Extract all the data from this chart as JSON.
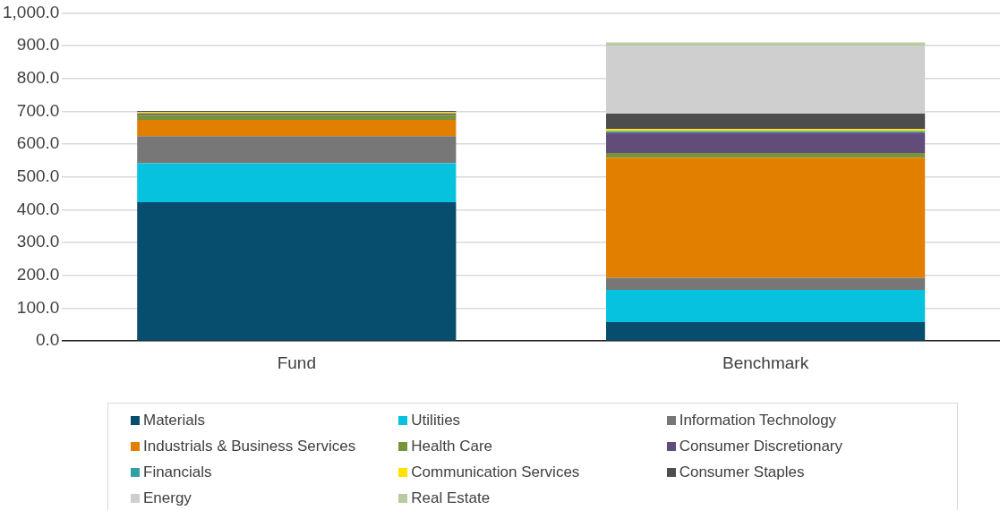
{
  "chart_data": {
    "type": "bar",
    "stacked": true,
    "categories": [
      "Fund",
      "Benchmark"
    ],
    "series": [
      {
        "name": "Materials",
        "color": "#074d6e",
        "values": [
          423,
          58
        ]
      },
      {
        "name": "Utilities",
        "color": "#06c2de",
        "values": [
          119,
          98
        ]
      },
      {
        "name": "Information Technology",
        "color": "#777777",
        "values": [
          82,
          37
        ]
      },
      {
        "name": "Industrials & Business Services",
        "color": "#e37f00",
        "values": [
          50,
          366
        ]
      },
      {
        "name": "Health Care",
        "color": "#77933c",
        "values": [
          15,
          14
        ]
      },
      {
        "name": "Consumer Discretionary",
        "color": "#624c7a",
        "values": [
          5,
          62
        ]
      },
      {
        "name": "Financials",
        "color": "#31a0a3",
        "values": [
          0,
          5
        ]
      },
      {
        "name": "Communication Services",
        "color": "#ffe100",
        "values": [
          4,
          6
        ]
      },
      {
        "name": "Consumer Staples",
        "color": "#4d4d4d",
        "values": [
          3,
          47
        ]
      },
      {
        "name": "Energy",
        "color": "#cfcfcf",
        "values": [
          0,
          207
        ]
      },
      {
        "name": "Real Estate",
        "color": "#b8cca0",
        "values": [
          0,
          10
        ]
      }
    ],
    "ylim": [
      0,
      1000
    ],
    "yticks": [
      {
        "value": 0,
        "label": "0.0"
      },
      {
        "value": 100,
        "label": "100.0"
      },
      {
        "value": 200,
        "label": "200.0"
      },
      {
        "value": 300,
        "label": "300.0"
      },
      {
        "value": 400,
        "label": "400.0"
      },
      {
        "value": 500,
        "label": "500.0"
      },
      {
        "value": 600,
        "label": "600.0"
      },
      {
        "value": 700,
        "label": "700.0"
      },
      {
        "value": 800,
        "label": "800.0"
      },
      {
        "value": 900,
        "label": "900.0"
      },
      {
        "value": 1000,
        "label": "1,000.0"
      }
    ],
    "grid": "y",
    "legend": "bottom"
  }
}
